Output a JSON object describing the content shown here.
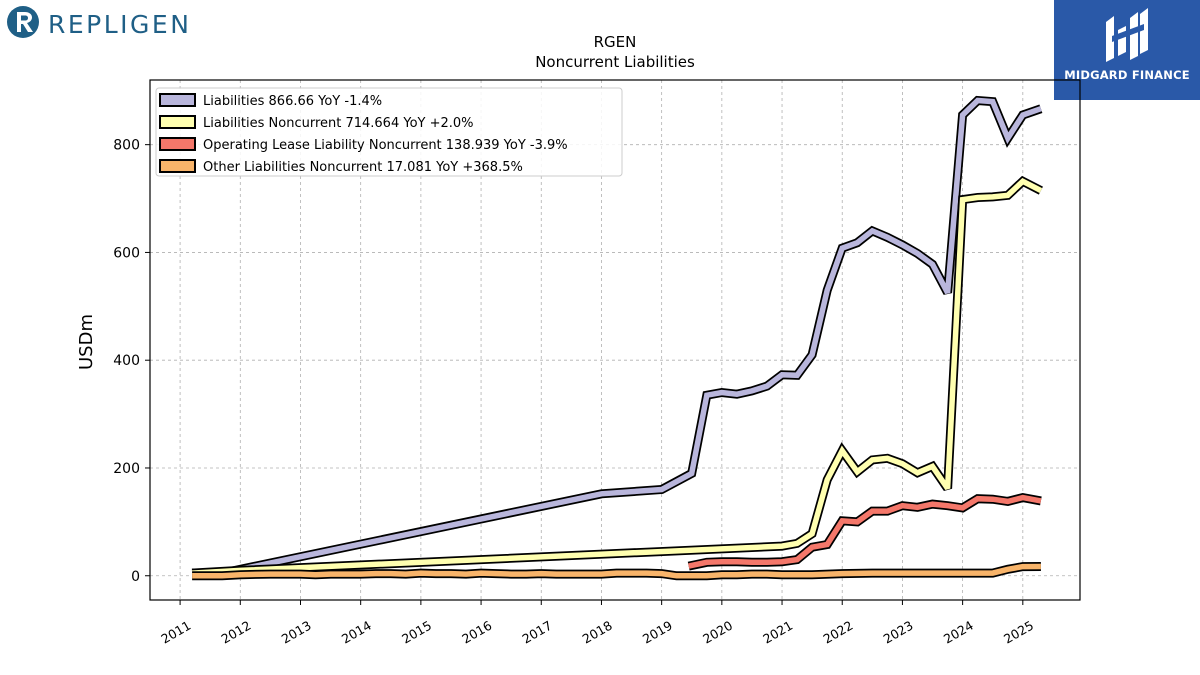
{
  "logos": {
    "company": "REPLIGEN",
    "watermark": "MIDGARD FINANCE"
  },
  "chart_data": {
    "type": "line",
    "title": "RGEN",
    "subtitle": "Noncurrent  Liabilities",
    "ylabel": "USDm",
    "xlabel": "",
    "ylim": [
      -45,
      920
    ],
    "xlim": [
      2010.5,
      2025.95
    ],
    "yticks": [
      0,
      200,
      400,
      600,
      800
    ],
    "xticks": [
      "2011",
      "2012",
      "2013",
      "2014",
      "2015",
      "2016",
      "2017",
      "2018",
      "2019",
      "2020",
      "2021",
      "2022",
      "2023",
      "2024",
      "2025"
    ],
    "grid": true,
    "legend_position": "top-left",
    "series": [
      {
        "name": "Liabilities  866.66 YoY -1.4%",
        "color": "#b9b6dc",
        "x": [
          2011.2,
          2011.7,
          2018.0,
          2019.0,
          2019.5,
          2019.75,
          2020.0,
          2020.25,
          2020.5,
          2020.75,
          2021.0,
          2021.25,
          2021.5,
          2021.75,
          2022.0,
          2022.25,
          2022.5,
          2022.75,
          2023.0,
          2023.25,
          2023.5,
          2023.75,
          2024.0,
          2024.25,
          2024.5,
          2024.75,
          2025.0,
          2025.3
        ],
        "values": [
          5,
          5,
          152,
          160,
          190,
          335,
          340,
          337,
          343,
          352,
          373,
          372,
          410,
          530,
          608,
          618,
          640,
          628,
          614,
          598,
          578,
          525,
          855,
          882,
          880,
          812,
          855,
          866.66
        ]
      },
      {
        "name": "Liabilities Noncurrent  714.664 YoY +2.0%",
        "color": "#ffffb0",
        "x": [
          2011.2,
          2012.0,
          2021.0,
          2021.25,
          2021.5,
          2021.75,
          2022.0,
          2022.25,
          2022.5,
          2022.75,
          2023.0,
          2023.25,
          2023.5,
          2023.75,
          2024.0,
          2024.25,
          2024.5,
          2024.75,
          2025.0,
          2025.3
        ],
        "values": [
          5,
          10,
          55,
          60,
          78,
          178,
          232,
          193,
          215,
          218,
          208,
          191,
          203,
          162,
          698,
          702,
          703,
          706,
          732,
          714.664
        ]
      },
      {
        "name": "Operating Lease Liability Noncurrent  138.939 YoY -3.9%",
        "color": "#f4776a",
        "x": [
          2019.45,
          2019.75,
          2020.0,
          2020.25,
          2020.5,
          2020.75,
          2021.0,
          2021.25,
          2021.5,
          2021.75,
          2022.0,
          2022.25,
          2022.5,
          2022.75,
          2023.0,
          2023.25,
          2023.5,
          2023.75,
          2024.0,
          2024.25,
          2024.5,
          2024.75,
          2025.0,
          2025.3
        ],
        "values": [
          18,
          25,
          26,
          26,
          25,
          25,
          26,
          30,
          53,
          58,
          102,
          100,
          120,
          120,
          130,
          127,
          133,
          130,
          126,
          143,
          142,
          138,
          145,
          138.939
        ]
      },
      {
        "name": "Other Liabilities Noncurrent  17.081 YoY +368.5%",
        "color": "#f8b46a",
        "x": [
          2011.2,
          2011.7,
          2012.0,
          2012.5,
          2013.0,
          2013.25,
          2013.5,
          2014.0,
          2014.25,
          2014.5,
          2014.75,
          2015.0,
          2015.25,
          2015.5,
          2015.75,
          2016.0,
          2016.25,
          2016.5,
          2016.75,
          2017.0,
          2017.25,
          2017.5,
          2017.75,
          2018.0,
          2018.25,
          2018.5,
          2018.75,
          2019.0,
          2019.25,
          2019.5,
          2019.75,
          2020.0,
          2020.25,
          2020.5,
          2020.75,
          2021.0,
          2021.5,
          2022.0,
          2022.5,
          2023.0,
          2023.5,
          2024.0,
          2024.5,
          2024.75,
          2025.0,
          2025.3
        ],
        "values": [
          0,
          0,
          2,
          3,
          3,
          2,
          3,
          3,
          4,
          4,
          3,
          5,
          4,
          4,
          3,
          5,
          4,
          3,
          3,
          4,
          3,
          3,
          3,
          3,
          5,
          5,
          5,
          4,
          0,
          0,
          0,
          2,
          2,
          3,
          3,
          2,
          2,
          4,
          5,
          5,
          5,
          5,
          5,
          12,
          17,
          17.081
        ]
      }
    ]
  }
}
